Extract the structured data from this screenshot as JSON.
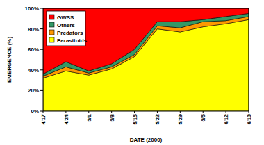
{
  "chart_data": {
    "type": "area",
    "stacked": true,
    "x_label": "DATE (2000)",
    "y_label": "EMERGENCE (%)",
    "categories": [
      "4/17",
      "4/24",
      "5/1",
      "5/8",
      "5/15",
      "5/22",
      "5/29",
      "6/5",
      "6/12",
      "6/19"
    ],
    "series": [
      {
        "name": "Parasitoids",
        "color": "#ffff00",
        "values": [
          32,
          39,
          35,
          41,
          53,
          80,
          77,
          82,
          85,
          89
        ]
      },
      {
        "name": "Predators",
        "color": "#ff9900",
        "values": [
          2,
          4,
          2,
          2,
          2,
          3,
          4,
          5,
          3,
          3
        ]
      },
      {
        "name": "Others",
        "color": "#339966",
        "values": [
          2,
          5,
          2,
          3,
          5,
          4,
          6,
          2,
          4,
          3
        ]
      },
      {
        "name": "GWSS",
        "color": "#ff0000",
        "values": [
          64,
          52,
          61,
          54,
          40,
          13,
          13,
          11,
          8,
          5
        ]
      }
    ],
    "ylim": [
      0,
      100
    ],
    "yticks": [
      {
        "value": 0,
        "label": "0%"
      },
      {
        "value": 20,
        "label": "20%"
      },
      {
        "value": 40,
        "label": "40%"
      },
      {
        "value": 60,
        "label": "60%"
      },
      {
        "value": 80,
        "label": "80%"
      },
      {
        "value": 100,
        "label": "100%"
      }
    ],
    "grid": false,
    "legend": "upper left"
  }
}
